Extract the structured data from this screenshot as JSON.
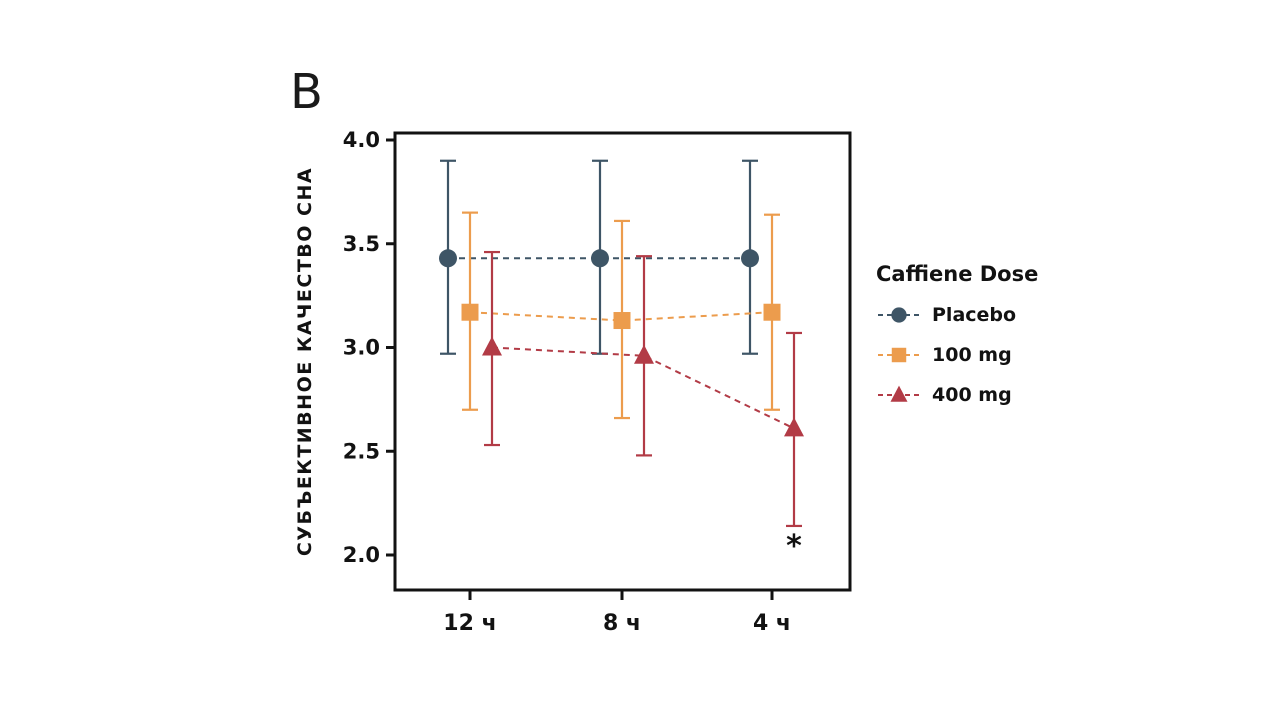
{
  "panel_label": "B",
  "chart_data": {
    "type": "line",
    "title": "",
    "ylabel": "СУБЪЕКТИВНОЕ КАЧЕСТВО СНА",
    "xlabel": "",
    "categories": [
      "12 ч",
      "8 ч",
      "4 ч"
    ],
    "ylim": [
      2.0,
      4.0
    ],
    "yticks": [
      4.0,
      3.5,
      3.0,
      2.5,
      2.0
    ],
    "grid": false,
    "legend_title": "Caffiene Dose",
    "legend_position": "right",
    "line_style": "dashed",
    "axis_color": "#121212",
    "series": [
      {
        "name": "Placebo",
        "marker": "circle",
        "color": "#3E5566",
        "values": [
          3.43,
          3.43,
          3.43
        ],
        "err_low": [
          2.97,
          2.97,
          2.97
        ],
        "err_high": [
          3.9,
          3.9,
          3.9
        ]
      },
      {
        "name": "100 mg",
        "marker": "square",
        "color": "#EC9C4D",
        "values": [
          3.17,
          3.13,
          3.17
        ],
        "err_low": [
          2.7,
          2.66,
          2.7
        ],
        "err_high": [
          3.65,
          3.61,
          3.64
        ]
      },
      {
        "name": "400 mg",
        "marker": "triangle",
        "color": "#B23B46",
        "values": [
          3.0,
          2.96,
          2.61
        ],
        "err_low": [
          2.53,
          2.48,
          2.14
        ],
        "err_high": [
          3.46,
          3.44,
          3.07
        ]
      }
    ],
    "annotations": [
      {
        "text": "*",
        "category_index": 2,
        "series": "400 mg"
      }
    ]
  }
}
